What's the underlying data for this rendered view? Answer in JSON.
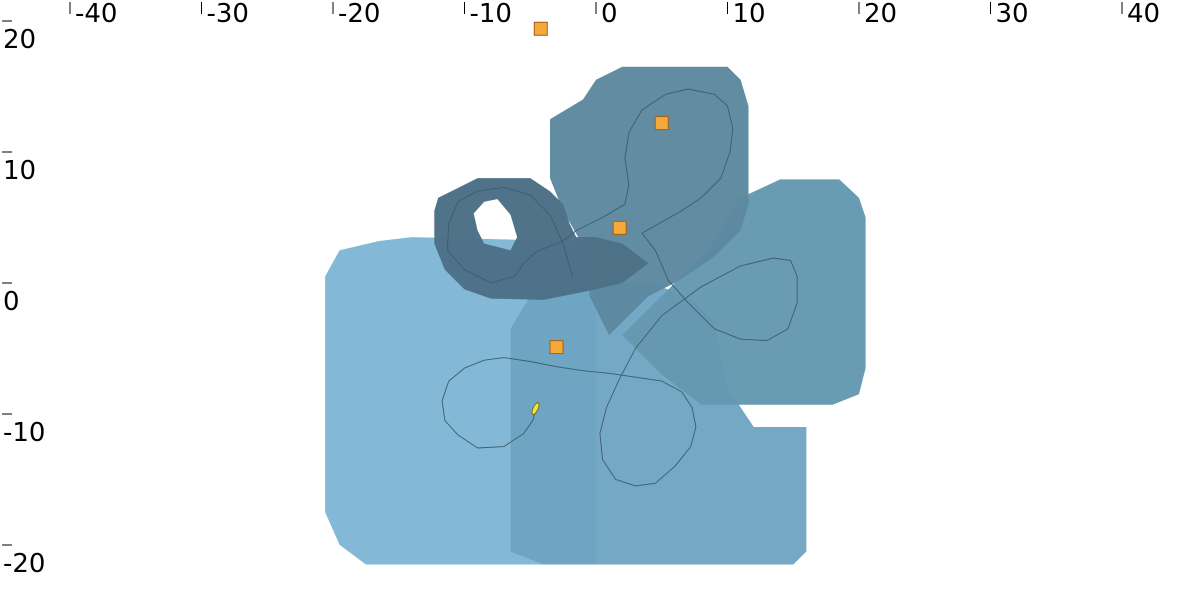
{
  "chart_data": {
    "type": "scatter",
    "title": "",
    "xlabel": "",
    "ylabel": "",
    "xlim": [
      -45,
      45
    ],
    "ylim": [
      -22,
      22
    ],
    "grid": false,
    "legend": "none",
    "x_ticks": [
      -40,
      -30,
      -20,
      -10,
      0,
      10,
      20,
      30,
      40
    ],
    "x_tick_labels": [
      "-40",
      "-30",
      "-20",
      "-10",
      "0",
      "10",
      "20",
      "30",
      "40"
    ],
    "y_ticks": [
      20,
      10,
      0,
      -10,
      -20
    ],
    "y_tick_labels": [
      "20",
      "10",
      "0",
      "-10",
      "-20"
    ],
    "regions": [
      {
        "color": "#7eb6d4",
        "opacity": 0.96,
        "polygon": [
          [
            -16.5,
            4.2
          ],
          [
            -14,
            4.5
          ],
          [
            -6,
            4.3
          ],
          [
            0,
            4.0
          ],
          [
            0,
            -20.5
          ],
          [
            -17.5,
            -20.5
          ],
          [
            -19.5,
            -19
          ],
          [
            -20.6,
            -16.5
          ],
          [
            -20.6,
            1.5
          ],
          [
            -19.5,
            3.5
          ]
        ]
      },
      {
        "color": "#6da3c1",
        "opacity": 0.95,
        "polygon": [
          [
            -5,
            0
          ],
          [
            -2,
            0.5
          ],
          [
            1,
            1
          ],
          [
            4,
            1
          ],
          [
            7,
            0
          ],
          [
            9,
            -2
          ],
          [
            10,
            -7
          ],
          [
            12,
            -10
          ],
          [
            16,
            -10
          ],
          [
            16,
            -19.5
          ],
          [
            15,
            -20.5
          ],
          [
            -4,
            -20.5
          ],
          [
            -6.5,
            -19.5
          ],
          [
            -6.5,
            -2.5
          ]
        ]
      },
      {
        "color": "#6699b0",
        "opacity": 0.98,
        "polygon": [
          [
            2,
            -3
          ],
          [
            5,
            0
          ],
          [
            8.5,
            3.5
          ],
          [
            11,
            7.5
          ],
          [
            14,
            8.9
          ],
          [
            18.5,
            8.9
          ],
          [
            20,
            7.5
          ],
          [
            20.5,
            6
          ],
          [
            20.5,
            -5.5
          ],
          [
            20,
            -7.5
          ],
          [
            18,
            -8.3
          ],
          [
            8,
            -8.3
          ],
          [
            5,
            -6
          ],
          [
            3,
            -4
          ]
        ]
      },
      {
        "color": "#5e8aa0",
        "opacity": 0.98,
        "polygon": [
          [
            -1,
            15
          ],
          [
            0,
            16.5
          ],
          [
            2,
            17.5
          ],
          [
            10,
            17.5
          ],
          [
            11,
            16.5
          ],
          [
            11.6,
            14.5
          ],
          [
            11.6,
            7
          ],
          [
            11,
            5
          ],
          [
            9,
            3
          ],
          [
            6,
            1
          ],
          [
            4,
            0
          ],
          [
            1,
            -3
          ],
          [
            -0.5,
            0
          ],
          [
            -0.5,
            3
          ],
          [
            -2.5,
            6.5
          ],
          [
            -3.5,
            9
          ],
          [
            -3.5,
            13.5
          ]
        ]
      },
      {
        "color": "#4d7087",
        "opacity": 0.98,
        "polygon": [
          [
            -11,
            8
          ],
          [
            -12,
            7.5
          ],
          [
            -12.3,
            6.5
          ],
          [
            -12.3,
            4
          ],
          [
            -11.5,
            2
          ],
          [
            -10,
            0.5
          ],
          [
            -8,
            -0.2
          ],
          [
            -4,
            -0.3
          ],
          [
            0,
            0.5
          ],
          [
            2,
            1
          ],
          [
            4,
            2.5
          ],
          [
            2,
            4
          ],
          [
            0,
            4.5
          ],
          [
            -1.5,
            4.5
          ],
          [
            -2,
            5.5
          ],
          [
            -2.5,
            7
          ],
          [
            -3.5,
            8
          ],
          [
            -5,
            9
          ],
          [
            -9,
            9
          ]
        ]
      }
    ],
    "hole": [
      [
        -6.5,
        6.2
      ],
      [
        -7.5,
        7.4
      ],
      [
        -8.5,
        7.2
      ],
      [
        -9.3,
        6.3
      ],
      [
        -9,
        5
      ],
      [
        -8.5,
        4
      ],
      [
        -6.5,
        3.5
      ],
      [
        -6,
        4.5
      ]
    ],
    "track": [
      [
        -4.6,
        -8.6
      ],
      [
        -4.8,
        -9.5
      ],
      [
        -5.5,
        -10.5
      ],
      [
        -7,
        -11.5
      ],
      [
        -9,
        -11.6
      ],
      [
        -10.5,
        -10.6
      ],
      [
        -11.5,
        -9.5
      ],
      [
        -11.7,
        -8
      ],
      [
        -11.2,
        -6.5
      ],
      [
        -10,
        -5.5
      ],
      [
        -8.5,
        -4.9
      ],
      [
        -7,
        -4.7
      ],
      [
        -5,
        -5
      ],
      [
        -3,
        -5.4
      ],
      [
        -1,
        -5.7
      ],
      [
        1,
        -5.9
      ],
      [
        3,
        -6.2
      ],
      [
        5,
        -6.5
      ],
      [
        6.5,
        -7.3
      ],
      [
        7.3,
        -8.5
      ],
      [
        7.6,
        -10
      ],
      [
        7.2,
        -11.5
      ],
      [
        6,
        -13
      ],
      [
        4.5,
        -14.3
      ],
      [
        3,
        -14.5
      ],
      [
        1.5,
        -14
      ],
      [
        0.5,
        -12.5
      ],
      [
        0.3,
        -10.5
      ],
      [
        0.8,
        -8.5
      ],
      [
        1.7,
        -6.5
      ],
      [
        3,
        -4
      ],
      [
        5,
        -1.5
      ],
      [
        8,
        0.7
      ],
      [
        11,
        2.3
      ],
      [
        13.5,
        2.9
      ],
      [
        14.8,
        2.7
      ],
      [
        15.3,
        1.5
      ],
      [
        15.3,
        -0.5
      ],
      [
        14.6,
        -2.5
      ],
      [
        13,
        -3.4
      ],
      [
        11,
        -3.3
      ],
      [
        9,
        -2.5
      ],
      [
        7,
        -0.5
      ],
      [
        5.5,
        1.2
      ],
      [
        4.5,
        3.5
      ],
      [
        3.5,
        4.8
      ],
      [
        6.5,
        6.5
      ],
      [
        8,
        7.5
      ],
      [
        9.5,
        9
      ],
      [
        10.2,
        11
      ],
      [
        10.4,
        12.8
      ],
      [
        10,
        14.5
      ],
      [
        9,
        15.4
      ],
      [
        7,
        15.8
      ],
      [
        5.3,
        15.4
      ],
      [
        3.5,
        14.2
      ],
      [
        2.5,
        12.5
      ],
      [
        2.2,
        10.5
      ],
      [
        2.5,
        8.5
      ],
      [
        2.2,
        7
      ],
      [
        0.5,
        6
      ],
      [
        -1.5,
        5
      ],
      [
        -2.5,
        4.2
      ],
      [
        -4.5,
        3.4
      ],
      [
        -5.5,
        2.5
      ],
      [
        -6.2,
        1.5
      ],
      [
        -8,
        1
      ],
      [
        -10,
        2
      ],
      [
        -11.3,
        3.5
      ],
      [
        -11.2,
        5.5
      ],
      [
        -10.5,
        7.2
      ],
      [
        -9,
        8
      ],
      [
        -7,
        8.3
      ],
      [
        -5,
        7.7
      ],
      [
        -3.5,
        6.2
      ],
      [
        -2.5,
        4
      ],
      [
        -1.8,
        1.5
      ]
    ],
    "track_color": "#3d5c6e",
    "track_width": 0.9,
    "markers": [
      {
        "x": -4.2,
        "y": 20.4
      },
      {
        "x": 5,
        "y": 13.2
      },
      {
        "x": 1.8,
        "y": 5.2
      },
      {
        "x": -3,
        "y": -3.9
      }
    ],
    "marker_shape": "square",
    "marker_color": "#f5a93a",
    "marker_edge": "#a85f10",
    "end_marker": {
      "x": -4.6,
      "y": -8.6,
      "color": "#f1e04a"
    }
  }
}
